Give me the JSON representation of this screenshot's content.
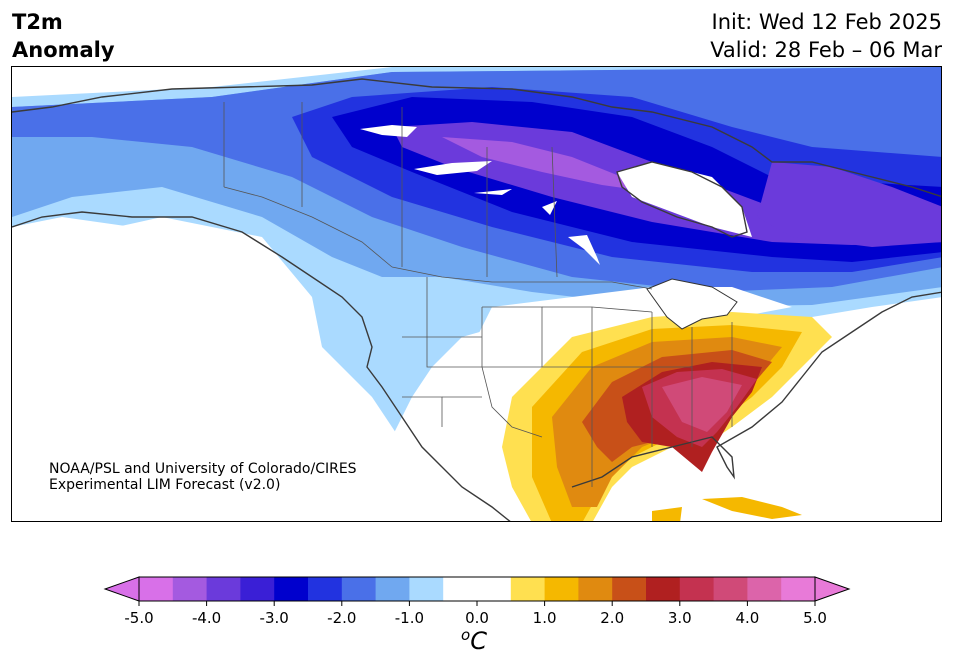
{
  "header": {
    "title_line1": "T2m",
    "title_line2": "Anomaly",
    "init": "Init: Wed 12 Feb 2025",
    "valid": "Valid: 28 Feb – 06 Mar"
  },
  "credit": {
    "line1": "NOAA/PSL and University of Colorado/CIRES",
    "line2": "Experimental LIM Forecast (v2.0)"
  },
  "colorbar": {
    "unit_sup": "o",
    "unit": "C",
    "colors": [
      "#d870e8",
      "#a45ae0",
      "#6b3adb",
      "#3a1fd6",
      "#0000cd",
      "#2233e0",
      "#4a70e8",
      "#70a8f0",
      "#aadaff",
      "#ffffff",
      "#ffffff",
      "#ffe050",
      "#f5b800",
      "#e08a10",
      "#c85018",
      "#b02020",
      "#c43250",
      "#d04a78",
      "#dc64aa",
      "#e87ad8"
    ],
    "ticks": [
      "-5.0",
      "-4.0",
      "-3.0",
      "-2.0",
      "-1.0",
      "0.0",
      "1.0",
      "2.0",
      "3.0",
      "4.0",
      "5.0"
    ]
  },
  "map": {
    "anomaly_levels": {
      "strong_cold": "#a45ae0",
      "purple": "#6b3adb",
      "deep_blue": "#0000cd",
      "blue": "#2233e0",
      "mid_blue": "#4a70e8",
      "light_blue": "#70a8f0",
      "pale_blue": "#aadaff",
      "neutral": "#ffffff",
      "yellow": "#ffe050",
      "gold": "#f5b800",
      "orange": "#e08a10",
      "dark_orange": "#c85018",
      "red": "#b02020",
      "crimson": "#c43250",
      "pink": "#d04a78"
    }
  }
}
